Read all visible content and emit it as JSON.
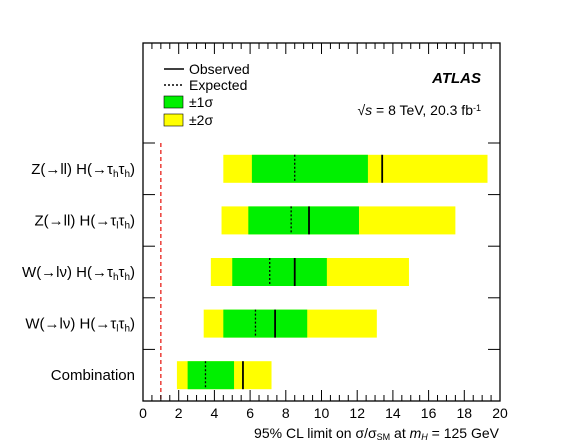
{
  "chart_data": {
    "type": "bar",
    "orientation": "horizontal",
    "categories": [
      {
        "parts": [
          {
            "t": "Z(→ll) H(→τ"
          },
          {
            "t": "h",
            "sub": true
          },
          {
            "t": "τ"
          },
          {
            "t": "h",
            "sub": true
          },
          {
            "t": ")"
          }
        ]
      },
      {
        "parts": [
          {
            "t": "Z(→ll) H(→τ"
          },
          {
            "t": "l",
            "sub": true
          },
          {
            "t": "τ"
          },
          {
            "t": "h",
            "sub": true
          },
          {
            "t": ")"
          }
        ]
      },
      {
        "parts": [
          {
            "t": "W(→lν) H(→τ"
          },
          {
            "t": "h",
            "sub": true
          },
          {
            "t": "τ"
          },
          {
            "t": "h",
            "sub": true
          },
          {
            "t": ")"
          }
        ]
      },
      {
        "parts": [
          {
            "t": "W(→lν) H(→τ"
          },
          {
            "t": "l",
            "sub": true
          },
          {
            "t": "τ"
          },
          {
            "t": "h",
            "sub": true
          },
          {
            "t": ")"
          }
        ]
      },
      {
        "parts": [
          {
            "t": "Combination"
          }
        ]
      }
    ],
    "series": [
      {
        "name": "Observed",
        "values": [
          13.4,
          9.3,
          8.5,
          7.4,
          5.6
        ]
      },
      {
        "name": "Expected",
        "values": [
          8.5,
          8.3,
          7.1,
          6.3,
          3.5
        ]
      },
      {
        "name": "±1σ",
        "ranges": [
          [
            6.1,
            12.6
          ],
          [
            5.9,
            12.1
          ],
          [
            5.0,
            10.3
          ],
          [
            4.5,
            9.2
          ],
          [
            2.5,
            5.1
          ]
        ]
      },
      {
        "name": "±2σ",
        "ranges": [
          [
            4.5,
            19.3
          ],
          [
            4.4,
            17.5
          ],
          [
            3.8,
            14.9
          ],
          [
            3.4,
            13.1
          ],
          [
            1.9,
            7.2
          ]
        ]
      }
    ],
    "reference_line": {
      "x": 1,
      "style": "dashed",
      "color": "#e8201a"
    },
    "xlim": [
      0,
      20
    ],
    "xticks": [
      0,
      2,
      4,
      6,
      8,
      10,
      12,
      14,
      16,
      18,
      20
    ],
    "xlabel": {
      "parts": [
        {
          "t": "95% CL limit on σ/σ"
        },
        {
          "t": "SM",
          "sub": true
        },
        {
          "t": " at "
        },
        {
          "t": "m",
          "italic": true
        },
        {
          "t": "H",
          "sub": true,
          "italic": true
        },
        {
          "t": " = 125 GeV"
        }
      ]
    },
    "legend": {
      "position": "top-left"
    },
    "annotation": {
      "experiment": "ATLAS",
      "energy_parts": [
        {
          "t": "√"
        },
        {
          "t": "s",
          "italic": true
        },
        {
          "t": " = 8 TeV, 20.3 fb"
        },
        {
          "t": "-1",
          "sup": true
        }
      ]
    },
    "colors": {
      "one_sigma": "#00f000",
      "two_sigma": "#ffff00",
      "line": "#000000",
      "sm_line": "#e8201a"
    }
  }
}
